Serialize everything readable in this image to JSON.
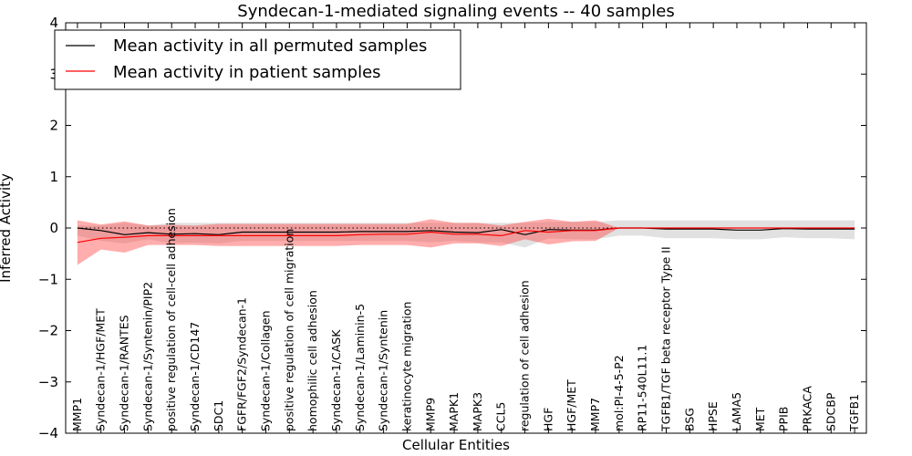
{
  "chart_data": {
    "type": "line",
    "title": "Syndecan-1-mediated signaling events -- 40 samples",
    "xlabel": "Cellular Entities",
    "ylabel": "Inferred Activity",
    "ylim": [
      -4,
      4
    ],
    "yticks": [
      -4,
      -3,
      -2,
      -1,
      0,
      1,
      2,
      3,
      4
    ],
    "ytick_labels": [
      "−4",
      "−3",
      "−2",
      "−1",
      "0",
      "1",
      "2",
      "3",
      "4"
    ],
    "reference_line": 0,
    "legend_position": "top-left",
    "categories": [
      "MMP1",
      "Syndecan-1/HGF/MET",
      "Syndecan-1/RANTES",
      "Syndecan-1/Syntenin/PIP2",
      "positive regulation of cell-cell adhesion",
      "Syndecan-1/CD147",
      "SDC1",
      "FGFR/FGF2/Syndecan-1",
      "Syndecan-1/Collagen",
      "positive regulation of cell migration",
      "homophilic cell adhesion",
      "Syndecan-1/CASK",
      "Syndecan-1/Laminin-5",
      "Syndecan-1/Syntenin",
      "keratinocyte migration",
      "MMP9",
      "MAPK1",
      "MAPK3",
      "CCL5",
      "regulation of cell adhesion",
      "HGF",
      "HGF/MET",
      "MMP7",
      "mol:PI-4-5-P2",
      "RP11-540L11.1",
      "TGFB1/TGF beta receptor Type II",
      "BSG",
      "HPSE",
      "LAMA5",
      "MET",
      "PPIB",
      "PRKACA",
      "SDCBP",
      "TGFB1"
    ],
    "series": [
      {
        "name": "Mean activity in all permuted samples",
        "color": "#000000",
        "band_color": "#c8c8c8",
        "values": [
          0.0,
          -0.05,
          -0.13,
          -0.09,
          -0.12,
          -0.11,
          -0.13,
          -0.08,
          -0.08,
          -0.08,
          -0.08,
          -0.08,
          -0.07,
          -0.07,
          -0.07,
          -0.05,
          -0.08,
          -0.09,
          -0.03,
          -0.13,
          -0.03,
          -0.04,
          -0.04,
          0.0,
          0.0,
          -0.02,
          -0.02,
          -0.02,
          -0.04,
          -0.04,
          -0.01,
          -0.02,
          -0.02,
          -0.02
        ],
        "upper": [
          0.05,
          0.05,
          0.1,
          0.05,
          0.1,
          0.1,
          0.1,
          0.1,
          0.1,
          0.1,
          0.1,
          0.1,
          0.1,
          0.1,
          0.1,
          0.1,
          0.1,
          0.1,
          0.1,
          0.1,
          0.12,
          0.12,
          0.12,
          0.15,
          0.15,
          0.15,
          0.15,
          0.15,
          0.15,
          0.15,
          0.15,
          0.15,
          0.15,
          0.15
        ],
        "lower": [
          -0.15,
          -0.25,
          -0.3,
          -0.22,
          -0.3,
          -0.28,
          -0.3,
          -0.25,
          -0.25,
          -0.25,
          -0.25,
          -0.25,
          -0.25,
          -0.25,
          -0.25,
          -0.28,
          -0.25,
          -0.28,
          -0.28,
          -0.38,
          -0.2,
          -0.22,
          -0.22,
          -0.15,
          -0.15,
          -0.2,
          -0.2,
          -0.2,
          -0.22,
          -0.22,
          -0.18,
          -0.2,
          -0.2,
          -0.22
        ]
      },
      {
        "name": "Mean activity in patient samples",
        "color": "#ff0000",
        "band_color": "#ff4a4a",
        "values": [
          -0.28,
          -0.2,
          -0.18,
          -0.15,
          -0.15,
          -0.15,
          -0.15,
          -0.15,
          -0.15,
          -0.15,
          -0.15,
          -0.15,
          -0.13,
          -0.12,
          -0.12,
          -0.08,
          -0.12,
          -0.12,
          -0.15,
          -0.05,
          -0.08,
          -0.05,
          -0.05,
          0.0,
          0.0,
          0.0,
          0.0,
          0.0,
          0.0,
          0.0,
          0.0,
          0.0,
          0.0,
          0.0
        ],
        "upper": [
          0.15,
          0.07,
          0.13,
          0.05,
          0.06,
          0.05,
          0.08,
          0.08,
          0.08,
          0.08,
          0.08,
          0.08,
          0.08,
          0.08,
          0.08,
          0.17,
          0.1,
          0.1,
          0.05,
          0.12,
          0.18,
          0.12,
          0.15,
          0.0,
          0.0,
          0.0,
          0.0,
          0.0,
          0.0,
          0.0,
          0.0,
          0.0,
          0.0,
          0.0
        ],
        "lower": [
          -0.72,
          -0.42,
          -0.48,
          -0.33,
          -0.33,
          -0.33,
          -0.35,
          -0.35,
          -0.35,
          -0.35,
          -0.35,
          -0.35,
          -0.33,
          -0.33,
          -0.33,
          -0.38,
          -0.3,
          -0.3,
          -0.35,
          -0.22,
          -0.32,
          -0.26,
          -0.25,
          0.0,
          0.0,
          0.0,
          0.0,
          0.0,
          0.0,
          0.0,
          0.0,
          0.0,
          0.0,
          0.0
        ]
      }
    ]
  }
}
